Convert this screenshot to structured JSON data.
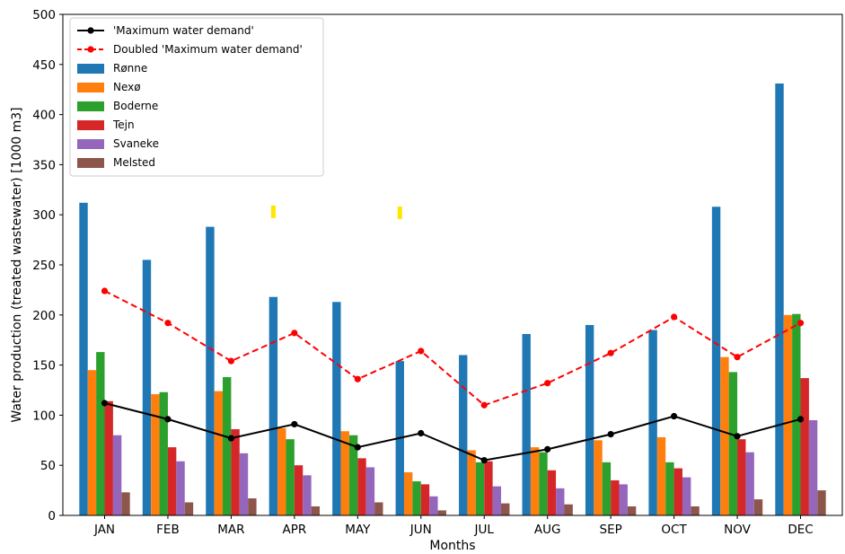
{
  "chart_data": {
    "type": "bar",
    "xlabel": "Months",
    "ylabel": "Water production (treated wastewater) [1000 m3]",
    "ylim": [
      0,
      500
    ],
    "yticks": [
      0,
      50,
      100,
      150,
      200,
      250,
      300,
      350,
      400,
      450,
      500
    ],
    "grid": false,
    "legend_position": "top-left",
    "categories": [
      "JAN",
      "FEB",
      "MAR",
      "APR",
      "MAY",
      "JUN",
      "JUL",
      "AUG",
      "SEP",
      "OCT",
      "NOV",
      "DEC"
    ],
    "series": [
      {
        "name": "Rønne",
        "color": "#1f77b4",
        "values": [
          312,
          255,
          288,
          218,
          213,
          154,
          160,
          181,
          190,
          185,
          308,
          431
        ]
      },
      {
        "name": "Nexø",
        "color": "#ff7f0e",
        "values": [
          145,
          121,
          124,
          87,
          84,
          43,
          65,
          68,
          75,
          78,
          158,
          200
        ]
      },
      {
        "name": "Boderne",
        "color": "#2ca02c",
        "values": [
          163,
          123,
          138,
          76,
          80,
          34,
          53,
          63,
          53,
          53,
          143,
          201
        ]
      },
      {
        "name": "Tejn",
        "color": "#d62728",
        "values": [
          114,
          68,
          86,
          50,
          57,
          31,
          54,
          45,
          35,
          47,
          76,
          137
        ]
      },
      {
        "name": "Svaneke",
        "color": "#9467bd",
        "values": [
          80,
          54,
          62,
          40,
          48,
          19,
          29,
          27,
          31,
          38,
          63,
          95
        ]
      },
      {
        "name": "Melsted",
        "color": "#8c564b",
        "values": [
          23,
          13,
          17,
          9,
          13,
          5,
          12,
          11,
          9,
          9,
          16,
          25
        ]
      }
    ],
    "lines": [
      {
        "name": "'Maximum water demand'",
        "color": "#000000",
        "style": "solid",
        "marker": "circle",
        "values": [
          112,
          96,
          77,
          91,
          68,
          82,
          55,
          66,
          81,
          99,
          79,
          96
        ]
      },
      {
        "name": "Doubled 'Maximum water demand'",
        "color": "#ff0000",
        "style": "dashed",
        "marker": "circle",
        "values": [
          224,
          192,
          154,
          182,
          136,
          164,
          110,
          132,
          162,
          198,
          158,
          192
        ]
      }
    ],
    "annotations": [
      {
        "shape": "yellow-marker",
        "category": "APR",
        "value": 303,
        "color": "#ffe600"
      },
      {
        "shape": "yellow-marker",
        "category": "JUN",
        "value": 302,
        "color": "#ffe600"
      }
    ]
  }
}
